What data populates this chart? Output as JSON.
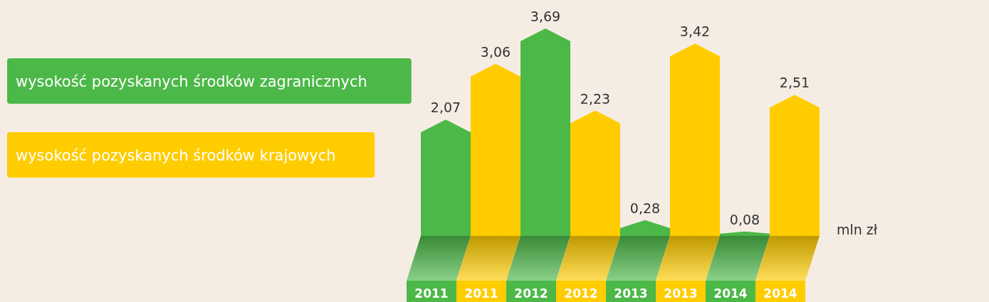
{
  "chart_data": {
    "type": "bar",
    "categories": [
      "2011",
      "2011",
      "2012",
      "2012",
      "2013",
      "2013",
      "2014",
      "2014"
    ],
    "series": [
      {
        "name": "wysokość pozyskanych środków zagranicznych",
        "color": "#4cb848",
        "values": [
          2.07,
          null,
          3.69,
          null,
          0.28,
          null,
          0.08,
          null
        ],
        "value_labels": [
          "2,07",
          null,
          "3,69",
          null,
          "0,28",
          null,
          "0,08",
          null
        ]
      },
      {
        "name": "wysokość pozyskanych środków krajowych",
        "color": "#ffcc00",
        "values": [
          null,
          3.06,
          null,
          2.23,
          null,
          3.42,
          null,
          2.51
        ],
        "value_labels": [
          null,
          "3,06",
          null,
          "2,23",
          null,
          "3,42",
          null,
          "2,51"
        ]
      }
    ],
    "legend": "left",
    "annotations": [
      "mln zł"
    ]
  }
}
